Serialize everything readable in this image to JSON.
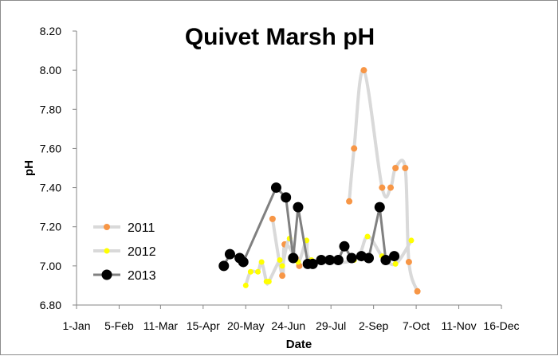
{
  "chart_data": {
    "type": "line",
    "title": "Quivet Marsh pH",
    "xlabel": "Date",
    "ylabel": "pH",
    "ylim": [
      6.8,
      8.2
    ],
    "y_ticks": [
      "6.80",
      "7.00",
      "7.20",
      "7.40",
      "7.60",
      "7.80",
      "8.00",
      "8.20"
    ],
    "x_ticks": [
      "1-Jan",
      "5-Feb",
      "11-Mar",
      "15-Apr",
      "20-May",
      "24-Jun",
      "29-Jul",
      "2-Sep",
      "7-Oct",
      "11-Nov",
      "16-Dec"
    ],
    "x_tick_days": [
      0,
      35,
      69,
      104,
      139,
      174,
      209,
      244,
      279,
      314,
      349
    ],
    "grid": false,
    "legend_position": "left",
    "series": [
      {
        "name": "2011",
        "color": "#d9d9d9",
        "marker_color": "#f79646",
        "segments": [
          [
            [
              161,
              7.24
            ],
            [
              169,
              6.95
            ],
            [
              171,
              7.11
            ],
            [
              180,
              7.04
            ],
            [
              183,
              7.0
            ]
          ],
          [
            [
              224,
              7.33
            ],
            [
              228,
              7.6
            ],
            [
              236,
              8.0
            ],
            [
              251,
              7.4
            ],
            [
              258,
              7.4
            ],
            [
              262,
              7.5
            ],
            [
              270,
              7.5
            ],
            [
              273,
              7.02
            ],
            [
              280,
              6.87
            ]
          ]
        ]
      },
      {
        "name": "2012",
        "color": "#d9d9d9",
        "marker_color": "#ffff00",
        "segments": [
          [
            [
              139,
              6.9
            ],
            [
              143,
              6.97
            ],
            [
              149,
              6.97
            ],
            [
              152,
              7.02
            ],
            [
              156,
              6.92
            ],
            [
              158,
              6.92
            ],
            [
              167,
              7.03
            ],
            [
              169,
              7.0
            ],
            [
              175,
              7.14
            ],
            [
              182,
              7.02
            ],
            [
              189,
              7.13
            ],
            [
              193,
              7.03
            ],
            [
              228,
              7.03
            ],
            [
              239,
              7.15
            ],
            [
              251,
              7.05
            ],
            [
              262,
              7.01
            ],
            [
              275,
              7.13
            ]
          ]
        ]
      },
      {
        "name": "2013",
        "color": "#808080",
        "marker_color": "#000000",
        "segments": [
          [
            [
              121,
              7.0
            ],
            [
              126,
              7.06
            ],
            [
              134,
              7.04
            ],
            [
              137,
              7.02
            ],
            [
              164,
              7.4
            ],
            [
              172,
              7.35
            ],
            [
              178,
              7.04
            ],
            [
              182,
              7.3
            ],
            [
              190,
              7.01
            ],
            [
              194,
              7.01
            ],
            [
              201,
              7.03
            ],
            [
              208,
              7.03
            ],
            [
              215,
              7.03
            ],
            [
              220,
              7.1
            ],
            [
              226,
              7.04
            ],
            [
              234,
              7.05
            ],
            [
              240,
              7.04
            ],
            [
              249,
              7.3
            ],
            [
              254,
              7.03
            ],
            [
              261,
              7.05
            ]
          ]
        ]
      }
    ]
  }
}
